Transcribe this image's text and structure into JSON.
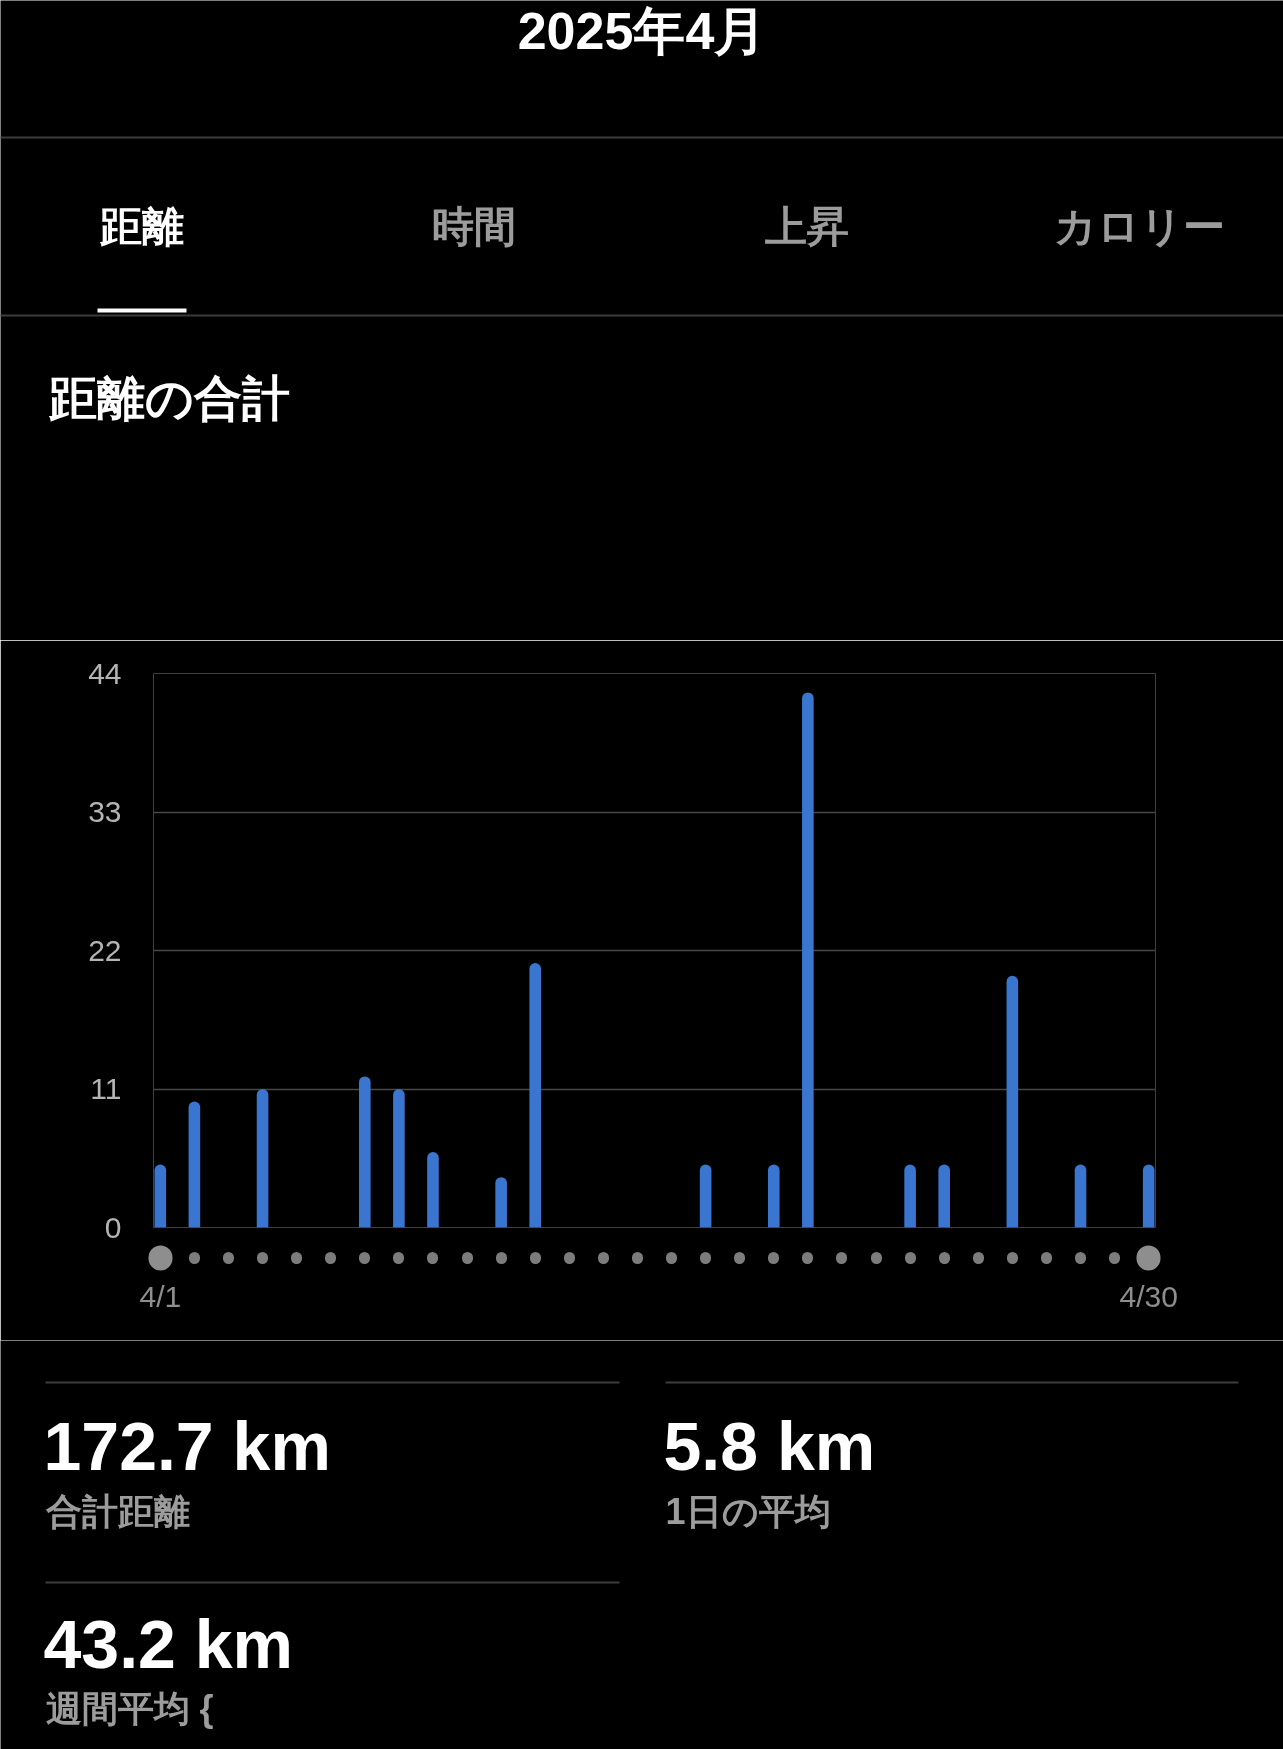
{
  "chart_data": {
    "type": "bar",
    "title": "2025年4月",
    "subtitle": "距離の合計",
    "annotations": [
      "距離",
      "時間",
      "上昇",
      "カロリー",
      "172.7 km",
      "合計距離",
      "5.8 km",
      "1日の平均",
      "43.2 km",
      "週間平均 {"
    ],
    "categories": [
      "4/1",
      null,
      null,
      null,
      null,
      null,
      null,
      null,
      null,
      null,
      null,
      null,
      null,
      null,
      null,
      null,
      null,
      null,
      null,
      null,
      null,
      null,
      null,
      null,
      null,
      null,
      null,
      null,
      null,
      "4/30"
    ],
    "values": [
      5,
      10,
      0,
      11,
      0,
      0,
      12,
      11,
      6,
      0,
      4,
      21,
      0,
      0,
      0,
      0,
      5,
      0,
      5,
      42.5,
      0,
      0,
      5,
      5,
      0,
      20,
      0,
      5,
      0,
      5
    ],
    "color": "#3a76d0",
    "ylim": [
      0,
      44
    ],
    "yticks": [
      0,
      11,
      22,
      33,
      44
    ],
    "grid": "y"
  }
}
